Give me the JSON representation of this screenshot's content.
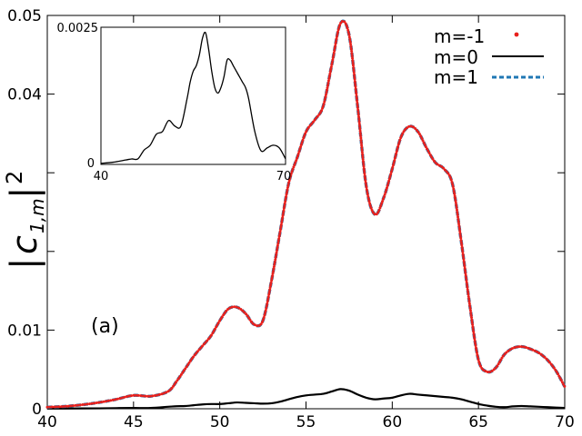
{
  "chart_data": [
    {
      "type": "line",
      "panel_label": "(a)",
      "title": "",
      "xlabel": "",
      "ylabel_parts": {
        "base": "c",
        "sub": "1,m",
        "sup": "2"
      },
      "xlim": [
        40,
        70
      ],
      "ylim": [
        0,
        0.05
      ],
      "xticks": [
        40,
        45,
        50,
        55,
        60,
        65,
        70
      ],
      "xtick_labels": [
        "40",
        "45",
        "50",
        "55",
        "60",
        "65",
        "70"
      ],
      "yticks": [
        0,
        0.01,
        0.02,
        0.03,
        0.04,
        0.05
      ],
      "ytick_labels": [
        "0",
        "0.01",
        "",
        "",
        "0.04",
        "0.05"
      ],
      "grid": false,
      "legend_position": "top-right",
      "x": [
        40,
        41,
        42,
        43,
        44,
        45,
        46,
        47,
        47.5,
        48,
        48.5,
        49,
        49.5,
        50,
        50.5,
        51,
        51.5,
        52,
        52.5,
        53,
        53.5,
        54,
        54.5,
        55,
        55.5,
        56,
        56.5,
        57,
        57.5,
        58,
        58.5,
        59,
        59.5,
        60,
        60.5,
        61,
        61.5,
        62,
        62.5,
        63,
        63.5,
        64,
        64.5,
        65,
        65.5,
        66,
        66.5,
        67,
        67.5,
        68,
        68.5,
        69,
        69.5,
        70
      ],
      "series": [
        {
          "name": "m=-1",
          "style": "dots",
          "color": "#e8201c",
          "values": [
            0.0002,
            0.0003,
            0.0005,
            0.0008,
            0.0012,
            0.0017,
            0.0016,
            0.0022,
            0.0035,
            0.0051,
            0.0067,
            0.008,
            0.0093,
            0.0112,
            0.0127,
            0.0129,
            0.0121,
            0.0107,
            0.0112,
            0.0163,
            0.0225,
            0.0287,
            0.032,
            0.0352,
            0.0367,
            0.0385,
            0.0438,
            0.049,
            0.0475,
            0.0383,
            0.0282,
            0.0247,
            0.0268,
            0.0305,
            0.0345,
            0.0359,
            0.0352,
            0.0331,
            0.0313,
            0.0305,
            0.0285,
            0.0213,
            0.0131,
            0.0062,
            0.0047,
            0.0052,
            0.0069,
            0.0077,
            0.0079,
            0.0076,
            0.0071,
            0.0062,
            0.0048,
            0.0028
          ]
        },
        {
          "name": "m=0",
          "style": "solid",
          "color": "#000000",
          "values": [
            2e-05,
            3e-05,
            4e-05,
            5e-05,
            8e-05,
            0.0001,
            0.0001,
            0.00025,
            0.00032,
            0.00035,
            0.00045,
            0.00055,
            0.0006,
            0.0006,
            0.0007,
            0.0008,
            0.00075,
            0.0007,
            0.00065,
            0.0007,
            0.0009,
            0.0012,
            0.0015,
            0.0017,
            0.0018,
            0.0019,
            0.0022,
            0.0025,
            0.0023,
            0.0018,
            0.0014,
            0.0012,
            0.0013,
            0.0014,
            0.0017,
            0.0019,
            0.0018,
            0.0017,
            0.0016,
            0.0015,
            0.0014,
            0.0012,
            0.0009,
            0.0006,
            0.0004,
            0.00025,
            0.0002,
            0.0003,
            0.00035,
            0.0003,
            0.00025,
            0.0002,
            0.00015,
            0.0001
          ]
        },
        {
          "name": "m=1",
          "style": "dashed",
          "color": "#1f77b4",
          "values": [
            0.0002,
            0.0003,
            0.0005,
            0.0008,
            0.0012,
            0.0017,
            0.0016,
            0.0022,
            0.0035,
            0.0051,
            0.0067,
            0.008,
            0.0093,
            0.0112,
            0.0127,
            0.0129,
            0.0121,
            0.0107,
            0.0112,
            0.0163,
            0.0225,
            0.0287,
            0.032,
            0.0352,
            0.0367,
            0.0385,
            0.0438,
            0.049,
            0.0475,
            0.0383,
            0.0282,
            0.0247,
            0.0268,
            0.0305,
            0.0345,
            0.0359,
            0.0352,
            0.0331,
            0.0313,
            0.0305,
            0.0285,
            0.0213,
            0.0131,
            0.0062,
            0.0047,
            0.0052,
            0.0069,
            0.0077,
            0.0079,
            0.0076,
            0.0071,
            0.0062,
            0.0048,
            0.0028
          ]
        }
      ]
    },
    {
      "type": "line",
      "role": "inset",
      "title": "",
      "xlim": [
        40,
        70
      ],
      "ylim": [
        0,
        0.0025
      ],
      "xtick_labels": [
        "40",
        "70"
      ],
      "ytick_labels": [
        "0",
        "0.0025"
      ],
      "series": [
        {
          "name": "m=0",
          "color": "#000000",
          "x": [
            40,
            42,
            44,
            45,
            46,
            47,
            48,
            49,
            50,
            51,
            52,
            53,
            54,
            54.5,
            55,
            55.5,
            56,
            56.5,
            57,
            57.5,
            58,
            58.5,
            59,
            59.5,
            60,
            60.5,
            61,
            61.5,
            62,
            62.5,
            63,
            63.5,
            64,
            65,
            66,
            67,
            68,
            69,
            70
          ],
          "values": [
            2e-05,
            4e-05,
            8e-05,
            0.0001,
            0.0001,
            0.00026,
            0.00035,
            0.00055,
            0.0006,
            0.0008,
            0.0007,
            0.0007,
            0.0012,
            0.0015,
            0.0017,
            0.0018,
            0.002,
            0.0023,
            0.0024,
            0.0021,
            0.0017,
            0.0014,
            0.0013,
            0.0014,
            0.0016,
            0.0019,
            0.0019,
            0.0018,
            0.0017,
            0.0016,
            0.0015,
            0.0014,
            0.0012,
            0.0006,
            0.00025,
            0.0003,
            0.00035,
            0.0003,
            0.0001
          ]
        }
      ]
    }
  ]
}
